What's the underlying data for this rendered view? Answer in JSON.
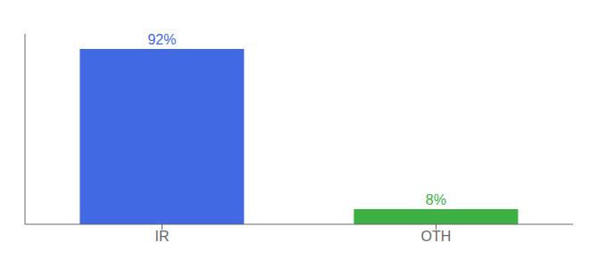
{
  "chart_data": {
    "type": "bar",
    "categories": [
      "IR",
      "OTH"
    ],
    "values": [
      92,
      8
    ],
    "value_labels": [
      "92%",
      "8%"
    ],
    "colors": [
      "#4169e1",
      "#3cb043"
    ],
    "ylim": [
      0,
      100
    ],
    "data_labels": true,
    "tick_labels": "x",
    "grid": false
  }
}
